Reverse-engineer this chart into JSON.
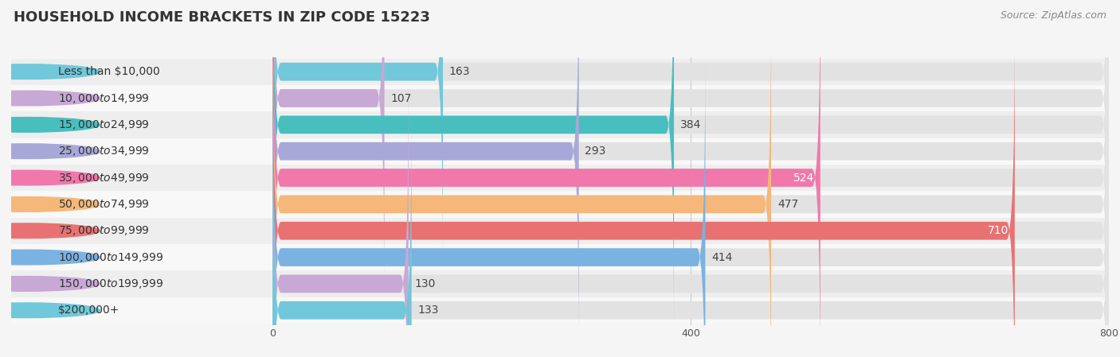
{
  "title": "HOUSEHOLD INCOME BRACKETS IN ZIP CODE 15223",
  "source": "Source: ZipAtlas.com",
  "categories": [
    "Less than $10,000",
    "$10,000 to $14,999",
    "$15,000 to $24,999",
    "$25,000 to $34,999",
    "$35,000 to $49,999",
    "$50,000 to $74,999",
    "$75,000 to $99,999",
    "$100,000 to $149,999",
    "$150,000 to $199,999",
    "$200,000+"
  ],
  "values": [
    163,
    107,
    384,
    293,
    524,
    477,
    710,
    414,
    130,
    133
  ],
  "bar_colors": [
    "#70c8da",
    "#c8a8d5",
    "#48bfbe",
    "#a8a8d8",
    "#f078aa",
    "#f5b87a",
    "#e87272",
    "#7ab2e2",
    "#c8a8d5",
    "#70c8da"
  ],
  "label_colors": [
    "#555555",
    "#555555",
    "#555555",
    "#555555",
    "#ffffff",
    "#555555",
    "#ffffff",
    "#555555",
    "#555555",
    "#555555"
  ],
  "xmax": 800,
  "xticks": [
    0,
    400,
    800
  ],
  "background_color": "#f5f5f5",
  "row_bg_colors": [
    "#f0f0f0",
    "#e8e8e8"
  ],
  "bar_bg_color": "#e0e0e0",
  "title_fontsize": 13,
  "source_fontsize": 9,
  "label_fontsize": 10,
  "category_fontsize": 10
}
